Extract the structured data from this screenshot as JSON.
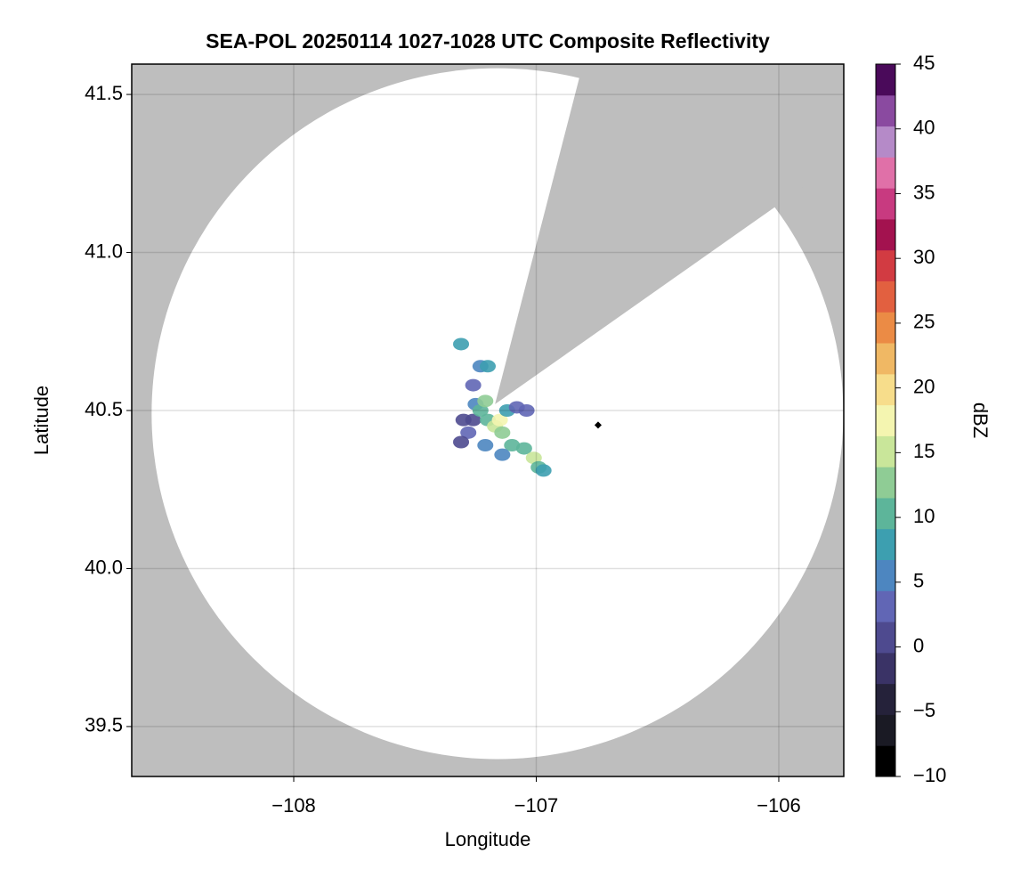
{
  "chart_data": {
    "type": "radar_map",
    "title": "SEA-POL 20250114 1027-1028 UTC Composite Reflectivity",
    "x_label": "Longitude",
    "y_label": "Latitude",
    "colorbar_label": "dBZ",
    "xlim": [
      -108.668,
      -105.732
    ],
    "ylim": [
      39.342,
      41.596
    ],
    "xticks": [
      {
        "value": -108,
        "label": "−108"
      },
      {
        "value": -107,
        "label": "−107"
      },
      {
        "value": -106,
        "label": "−106"
      }
    ],
    "yticks": [
      39.5,
      {
        "value": 40,
        "label": "40.0"
      },
      40.5,
      {
        "value": 41,
        "label": "41.0"
      },
      41.5
    ],
    "grid": true,
    "clim": [
      -10,
      45
    ],
    "cticks": [
      {
        "value": -10,
        "label": "−10"
      },
      {
        "value": -5,
        "label": "−5"
      },
      0,
      5,
      10,
      15,
      20,
      25,
      30,
      35,
      40,
      45
    ],
    "colormap": [
      "#000000",
      "#1a1a24",
      "#25223a",
      "#3a3366",
      "#4e4a8f",
      "#6166b5",
      "#4d86c0",
      "#3d9fb0",
      "#5db59a",
      "#8fcc95",
      "#c9e69a",
      "#f4f5b0",
      "#f7dd8b",
      "#f0b864",
      "#eb8b45",
      "#e26040",
      "#d23b42",
      "#a3124f",
      "#c83a80",
      "#e070a8",
      "#b58ac8",
      "#8a4aa0",
      "#4a0a5a"
    ],
    "no_coverage_color": "#bebebe",
    "coverage": {
      "center_lon": -107.16,
      "center_lat": 40.49,
      "lon_radius": 1.426,
      "lat_radius": 1.093,
      "blocked_sector_lon": [
        -107.17,
        -106.83,
        -106.06
      ],
      "blocked_sector_lat": [
        40.52,
        41.53,
        41.12
      ]
    },
    "echoes": {
      "lon": [
        -107.31,
        -107.23,
        -107.2,
        -107.3,
        -107.28,
        -107.26,
        -107.25,
        -107.23,
        -107.21,
        -107.2,
        -107.17,
        -107.15,
        -107.14,
        -107.12,
        -107.08,
        -107.04,
        -107.1,
        -107.05,
        -107.01,
        -106.99,
        -106.97,
        -107.14,
        -107.21,
        -107.26,
        -107.31
      ],
      "lat": [
        40.71,
        40.64,
        40.64,
        40.47,
        40.43,
        40.47,
        40.52,
        40.5,
        40.53,
        40.47,
        40.45,
        40.47,
        40.43,
        40.5,
        40.51,
        40.5,
        40.39,
        40.38,
        40.35,
        40.32,
        40.31,
        40.36,
        40.39,
        40.58,
        40.4
      ],
      "dbz": [
        8,
        7,
        9,
        2,
        3,
        0,
        5,
        12,
        14,
        10,
        16,
        18,
        13,
        9,
        4,
        3,
        11,
        12,
        15,
        10,
        8,
        7,
        6,
        4,
        1
      ]
    },
    "marker": {
      "lon": -106.745,
      "lat": 40.454,
      "color": "#000000"
    }
  }
}
